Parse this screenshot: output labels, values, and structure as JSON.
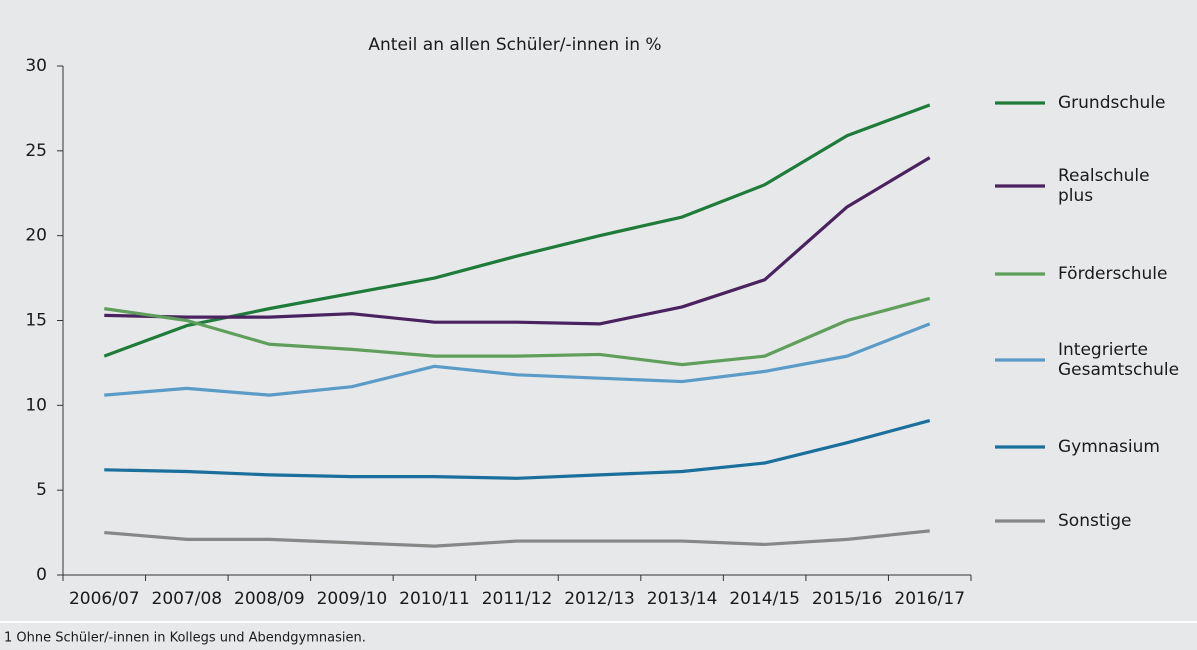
{
  "chart_data": {
    "type": "line",
    "title": "Anteil an allen Schüler/-innen in %",
    "footnote": "1 Ohne Schüler/-innen in Kollegs und Abendgymnasien.",
    "categories": [
      "2006/07",
      "2007/08",
      "2008/09",
      "2009/10",
      "2010/11",
      "2011/12",
      "2012/13",
      "2013/14",
      "2014/15",
      "2015/16",
      "2016/17"
    ],
    "series": [
      {
        "name": "Grundschule",
        "color": "#1e7b3a",
        "values": [
          12.9,
          14.7,
          15.7,
          16.6,
          17.5,
          18.8,
          20.0,
          21.1,
          23.0,
          25.9,
          27.7
        ]
      },
      {
        "name": "Realschule plus",
        "color": "#4b2260",
        "values": [
          15.3,
          15.2,
          15.2,
          15.4,
          14.9,
          14.9,
          14.8,
          15.8,
          17.4,
          21.7,
          24.6
        ]
      },
      {
        "name": "Förderschule",
        "color": "#5f9e5b",
        "values": [
          15.7,
          15.0,
          13.6,
          13.3,
          12.9,
          12.9,
          13.0,
          12.4,
          12.9,
          15.0,
          16.3
        ]
      },
      {
        "name": "Integrierte Gesamtschule",
        "color": "#5b9bc8",
        "values": [
          10.6,
          11.0,
          10.6,
          11.1,
          12.3,
          11.8,
          11.6,
          11.4,
          12.0,
          12.9,
          14.8
        ]
      },
      {
        "name": "Gymnasium",
        "color": "#1a6f9c",
        "values": [
          6.2,
          6.1,
          5.9,
          5.8,
          5.8,
          5.7,
          5.9,
          6.1,
          6.6,
          7.8,
          9.1
        ]
      },
      {
        "name": "Sonstige",
        "color": "#878787",
        "values": [
          2.5,
          2.1,
          2.1,
          1.9,
          1.7,
          2.0,
          2.0,
          2.0,
          1.8,
          2.1,
          2.6
        ]
      }
    ],
    "ylim": [
      0,
      30
    ],
    "yticks": [
      0,
      5,
      10,
      15,
      20,
      25,
      30
    ],
    "grid": false,
    "legend": "right"
  }
}
